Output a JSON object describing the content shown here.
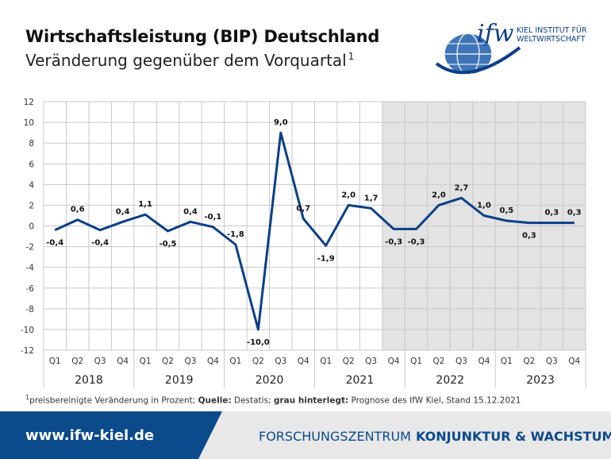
{
  "header": {
    "title": "Wirtschaftsleistung (BIP) Deutschland",
    "subtitle": "Veränderung gegenüber dem Vorquartal",
    "subtitle_sup": "1"
  },
  "logo": {
    "mark": "ifw",
    "line1": "KIEL INSTITUT FÜR",
    "line2": "WELTWIRTSCHAFT",
    "icon": "globe-icon"
  },
  "chart_data": {
    "type": "line",
    "x": [
      "2018 Q1",
      "2018 Q2",
      "2018 Q3",
      "2018 Q4",
      "2019 Q1",
      "2019 Q2",
      "2019 Q3",
      "2019 Q4",
      "2020 Q1",
      "2020 Q2",
      "2020 Q3",
      "2020 Q4",
      "2021 Q1",
      "2021 Q2",
      "2021 Q3",
      "2021 Q4",
      "2022 Q1",
      "2022 Q2",
      "2022 Q3",
      "2022 Q4",
      "2023 Q1",
      "2023 Q2",
      "2023 Q3",
      "2023 Q4"
    ],
    "quarter_labels": [
      "Q1",
      "Q2",
      "Q3",
      "Q4",
      "Q1",
      "Q2",
      "Q3",
      "Q4",
      "Q1",
      "Q2",
      "Q3",
      "Q4",
      "Q1",
      "Q2",
      "Q3",
      "Q4",
      "Q1",
      "Q2",
      "Q3",
      "Q4",
      "Q1",
      "Q2",
      "Q3",
      "Q4"
    ],
    "years": [
      "2018",
      "2019",
      "2020",
      "2021",
      "2022",
      "2023"
    ],
    "values": [
      -0.4,
      0.6,
      -0.4,
      0.4,
      1.1,
      -0.5,
      0.4,
      -0.1,
      -1.8,
      -10.0,
      9.0,
      0.7,
      -1.9,
      2.0,
      1.7,
      -0.3,
      -0.3,
      2.0,
      2.7,
      1.0,
      0.5,
      0.3,
      0.3,
      0.3
    ],
    "data_labels": [
      "-0,4",
      "0,6",
      "-0,4",
      "0,4",
      "1,1",
      "-0,5",
      "0,4",
      "-0,1",
      "-1,8",
      "-10,0",
      "9,0",
      "0,7",
      "-1,9",
      "2,0",
      "1,7",
      "-0,3",
      "-0,3",
      "2,0",
      "2,7",
      "1,0",
      "0,5",
      "0,3",
      "0,3",
      "0,3"
    ],
    "ylim": [
      -12,
      12
    ],
    "yticks": [
      12,
      10,
      8,
      6,
      4,
      2,
      0,
      -2,
      -4,
      -6,
      -8,
      -10,
      -12
    ],
    "forecast_start_index": 15,
    "grid": true,
    "line_color": "#0b3f86",
    "forecast_shade": "#e3e3e3"
  },
  "footnote": {
    "sup": "1",
    "text1": "preisbereinigte Veränderung in Prozent; ",
    "source_label": "Quelle:",
    "text2": " Destatis; ",
    "shade_label": "grau hinterlegt:",
    "text3": " Prognose des IfW Kiel, Stand 15.12.2021"
  },
  "footer": {
    "url": "www.ifw-kiel.de",
    "center_light": "FORSCHUNGSZENTRUM",
    "center_bold": "KONJUNKTUR & WACHSTUM"
  }
}
